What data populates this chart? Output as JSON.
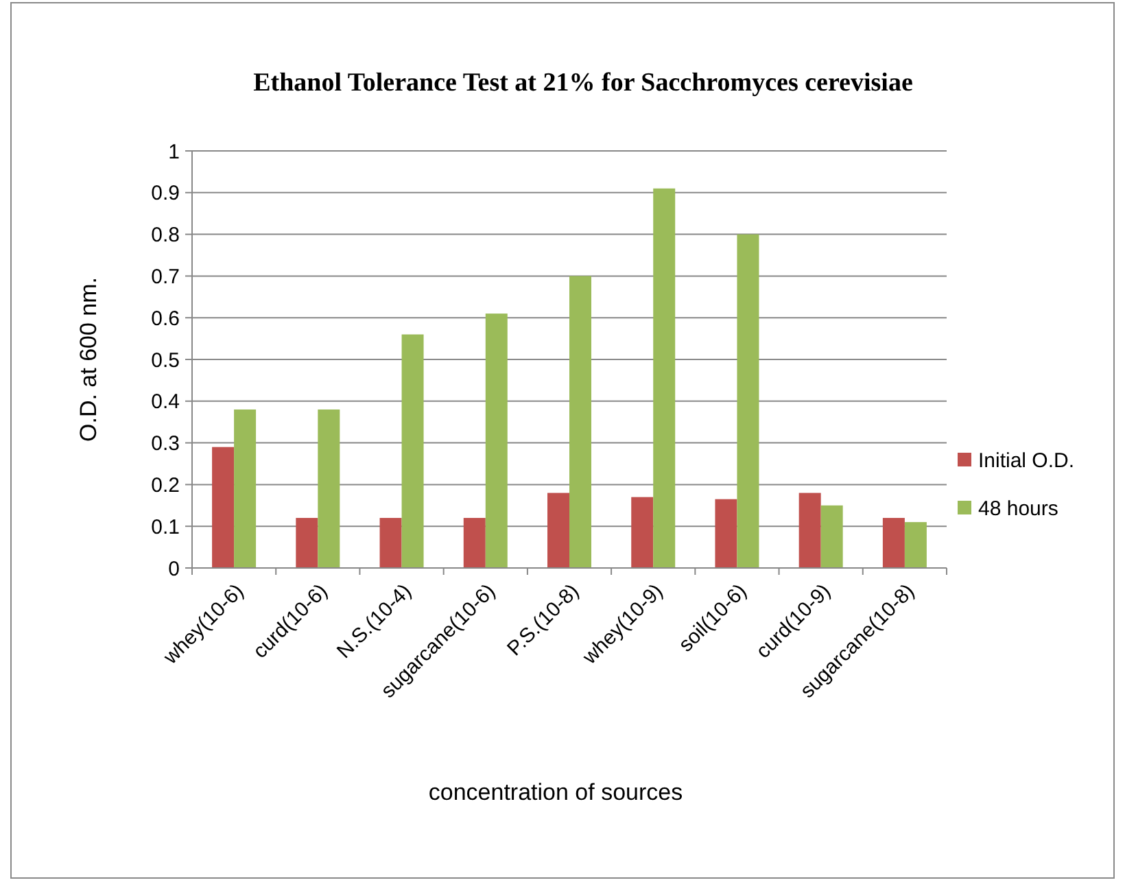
{
  "chart_data": {
    "type": "bar",
    "title": "Ethanol Tolerance Test at 21% for Sacchromyces cerevisiae",
    "xlabel": "concentration of sources",
    "ylabel": "O.D. at 600 nm.",
    "categories": [
      "whey(10-6)",
      "curd(10-6)",
      "N.S.(10-4)",
      "sugarcane(10-6)",
      "P.S.(10-8)",
      "whey(10-9)",
      "soil(10-6)",
      "curd(10-9)",
      "sugarcane(10-8)"
    ],
    "series": [
      {
        "name": "Initial O.D.",
        "color": "#c0504d",
        "values": [
          0.29,
          0.12,
          0.12,
          0.12,
          0.18,
          0.17,
          0.165,
          0.18,
          0.12
        ]
      },
      {
        "name": "48 hours",
        "color": "#9bbb59",
        "values": [
          0.38,
          0.38,
          0.56,
          0.61,
          0.7,
          0.91,
          0.8,
          0.15,
          0.11
        ]
      }
    ],
    "ylim": [
      0,
      1
    ],
    "yticks": [
      0,
      0.1,
      0.2,
      0.3,
      0.4,
      0.5,
      0.6,
      0.7,
      0.8,
      0.9,
      1
    ],
    "grid": "y",
    "legend": "right"
  }
}
